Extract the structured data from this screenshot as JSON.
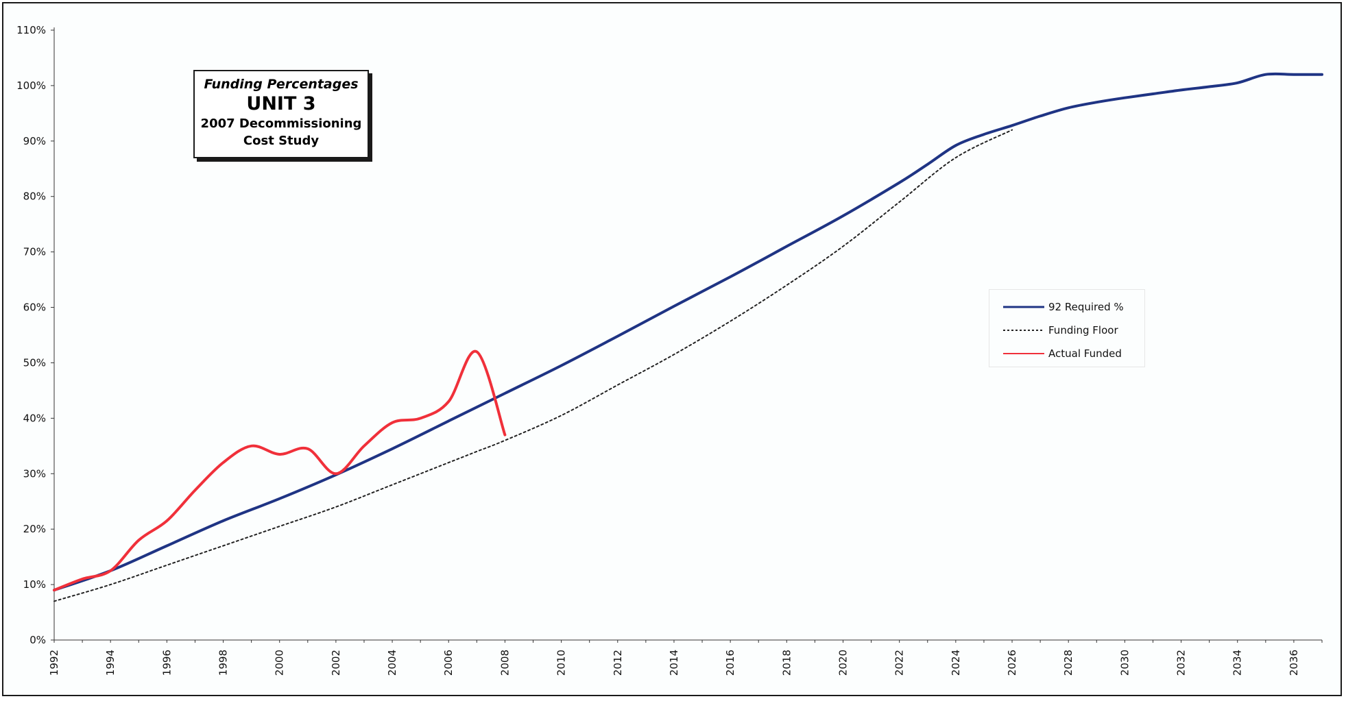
{
  "chart_data": {
    "type": "line",
    "title_lines": [
      "Funding Percentages",
      "UNIT 3",
      "2007 Decommissioning Cost Study"
    ],
    "y_ticks": [
      "0%",
      "10%",
      "20%",
      "30%",
      "40%",
      "50%",
      "60%",
      "70%",
      "80%",
      "90%",
      "100%",
      "110%"
    ],
    "ylim": [
      0,
      110
    ],
    "xlim": [
      1992,
      2037
    ],
    "x_ticks": [
      "1992",
      "1994",
      "1996",
      "1998",
      "2000",
      "2002",
      "2004",
      "2006",
      "2008",
      "2010",
      "2012",
      "2014",
      "2016",
      "2018",
      "2020",
      "2022",
      "2024",
      "2026",
      "2028",
      "2030",
      "2032",
      "2034",
      "2036"
    ],
    "legend_position": "right",
    "grid": false,
    "series": [
      {
        "name": "92 Required %",
        "color": "#1f3484",
        "style": "solid",
        "x": [
          1992,
          1994,
          1996,
          1998,
          2000,
          2002,
          2004,
          2006,
          2008,
          2010,
          2012,
          2014,
          2016,
          2018,
          2020,
          2022,
          2023,
          2024,
          2025,
          2026,
          2027,
          2028,
          2029,
          2030,
          2031,
          2032,
          2033,
          2034,
          2035,
          2036,
          2037
        ],
        "y": [
          9,
          12.5,
          17,
          21.5,
          25.5,
          29.8,
          34.5,
          39.5,
          44.5,
          49.5,
          54.8,
          60.2,
          65.5,
          71,
          76.5,
          82.5,
          85.8,
          89.2,
          91.2,
          92.8,
          94.5,
          96,
          97,
          97.8,
          98.5,
          99.2,
          99.8,
          100.5,
          102,
          102,
          102
        ]
      },
      {
        "name": "Funding Floor",
        "color": "#222222",
        "style": "dotted",
        "x": [
          1992,
          1994,
          1996,
          1998,
          2000,
          2002,
          2004,
          2006,
          2007,
          2008,
          2010,
          2012,
          2014,
          2016,
          2018,
          2020,
          2022,
          2024,
          2026
        ],
        "y": [
          7,
          10,
          13.5,
          17,
          20.5,
          24,
          28,
          32,
          34,
          36,
          40.5,
          46,
          51.5,
          57.5,
          64,
          71,
          79,
          87,
          92
        ]
      },
      {
        "name": "Actual Funded",
        "color": "#f0303a",
        "style": "solid",
        "x": [
          1992,
          1993,
          1994,
          1995,
          1996,
          1997,
          1998,
          1999,
          2000,
          2001,
          2002,
          2003,
          2004,
          2005,
          2006,
          2007,
          2008
        ],
        "y": [
          9,
          11,
          12.5,
          18,
          21.5,
          27,
          32,
          35,
          33.5,
          34.5,
          30,
          35,
          39.2,
          40,
          43,
          52,
          37
        ]
      }
    ]
  }
}
